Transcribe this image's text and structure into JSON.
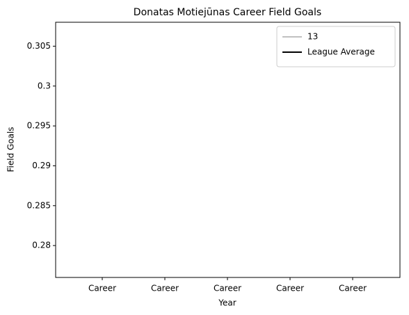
{
  "chart_data": {
    "type": "line",
    "title": "Donatas Motiejūnas Career Field Goals",
    "xlabel": "Year",
    "ylabel": "Field Goals",
    "categories": [
      "Career",
      "Career",
      "Career",
      "Career",
      "Career"
    ],
    "series": [
      {
        "name": "13",
        "color": "#c0c0c0",
        "values": [
          null,
          null,
          null,
          null,
          null
        ]
      },
      {
        "name": "League Average",
        "color": "#000000",
        "values": [
          null,
          null,
          null,
          null,
          null
        ]
      }
    ],
    "ylim": [
      0.276,
      0.308
    ],
    "yticks": [
      0.28,
      0.285,
      0.29,
      0.295,
      0.3,
      0.305
    ],
    "legend": "upper right"
  }
}
